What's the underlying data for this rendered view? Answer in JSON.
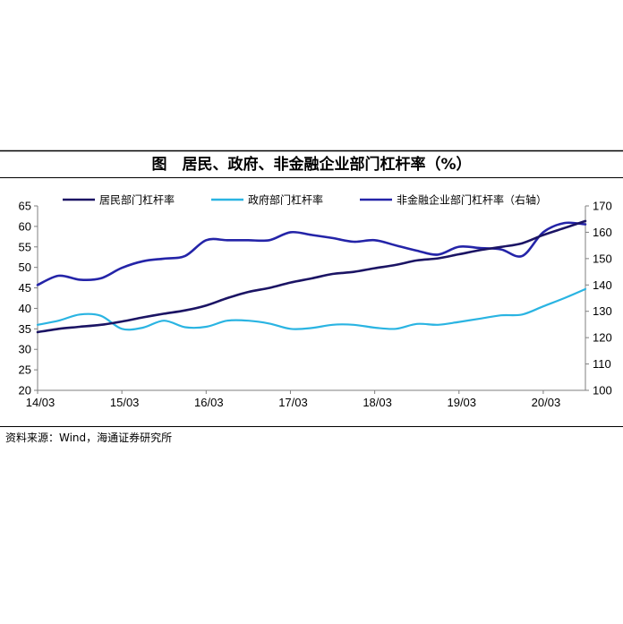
{
  "figure": {
    "title": "图　居民、政府、非金融企业部门杠杆率（%）",
    "source": "资料来源：Wind，海通证券研究所"
  },
  "colors": {
    "household": "#1b1464",
    "government": "#2ab4e2",
    "corporate": "#2424a8",
    "rule": "#000000",
    "axis": "#7f7f7f"
  },
  "chart_data": {
    "type": "line",
    "x_tick_labels": [
      "14/03",
      "15/03",
      "16/03",
      "17/03",
      "18/03",
      "19/03",
      "20/03"
    ],
    "x_ticks": [
      "2014-03",
      "2015-03",
      "2016-03",
      "2017-03",
      "2018-03",
      "2019-03",
      "2020-03"
    ],
    "x_range": [
      "2014-03",
      "2020-09"
    ],
    "y_left": {
      "min": 20,
      "max": 65,
      "step": 5,
      "ticks": [
        "65",
        "60",
        "55",
        "50",
        "45",
        "40",
        "35",
        "30",
        "25",
        "20"
      ]
    },
    "y_right": {
      "min": 100,
      "max": 170,
      "step": 10,
      "ticks": [
        "170",
        "160",
        "150",
        "140",
        "130",
        "120",
        "110",
        "100"
      ]
    },
    "grid": false,
    "legend_position": "top",
    "series": [
      {
        "key": "household",
        "name": "居民部门杠杆率",
        "axis": "left",
        "x": [
          "2014-03",
          "2014-06",
          "2014-09",
          "2014-12",
          "2015-03",
          "2015-06",
          "2015-09",
          "2015-12",
          "2016-03",
          "2016-06",
          "2016-09",
          "2016-12",
          "2017-03",
          "2017-06",
          "2017-09",
          "2017-12",
          "2018-03",
          "2018-06",
          "2018-09",
          "2018-12",
          "2019-03",
          "2019-06",
          "2019-09",
          "2019-12",
          "2020-03",
          "2020-06",
          "2020-09"
        ],
        "values": [
          34.2,
          35.0,
          35.5,
          36.0,
          36.8,
          37.8,
          38.7,
          39.5,
          40.7,
          42.5,
          44.0,
          45.0,
          46.3,
          47.3,
          48.4,
          48.9,
          49.8,
          50.6,
          51.7,
          52.2,
          53.2,
          54.2,
          55.0,
          55.9,
          57.9,
          59.6,
          61.3
        ]
      },
      {
        "key": "government",
        "name": "政府部门杠杆率",
        "axis": "left",
        "x": [
          "2014-03",
          "2014-06",
          "2014-09",
          "2014-12",
          "2015-03",
          "2015-06",
          "2015-09",
          "2015-12",
          "2016-03",
          "2016-06",
          "2016-09",
          "2016-12",
          "2017-03",
          "2017-06",
          "2017-09",
          "2017-12",
          "2018-03",
          "2018-06",
          "2018-09",
          "2018-12",
          "2019-03",
          "2019-06",
          "2019-09",
          "2019-12",
          "2020-03",
          "2020-06",
          "2020-09"
        ],
        "values": [
          36.0,
          37.0,
          38.5,
          38.2,
          35.0,
          35.3,
          37.0,
          35.4,
          35.5,
          37.0,
          37.0,
          36.3,
          35.0,
          35.2,
          36.0,
          36.0,
          35.3,
          35.0,
          36.2,
          36.0,
          36.7,
          37.5,
          38.3,
          38.5,
          40.5,
          42.5,
          44.7
        ]
      },
      {
        "key": "corporate",
        "name": "非金融企业部门杠杆率（右轴）",
        "axis": "right",
        "x": [
          "2014-03",
          "2014-06",
          "2014-09",
          "2014-12",
          "2015-03",
          "2015-06",
          "2015-09",
          "2015-12",
          "2016-03",
          "2016-06",
          "2016-09",
          "2016-12",
          "2017-03",
          "2017-06",
          "2017-09",
          "2017-12",
          "2018-03",
          "2018-06",
          "2018-09",
          "2018-12",
          "2019-03",
          "2019-06",
          "2019-09",
          "2019-12",
          "2020-03",
          "2020-06",
          "2020-09"
        ],
        "values": [
          140.0,
          143.5,
          142.0,
          142.5,
          146.5,
          149.0,
          150.0,
          151.0,
          157.0,
          157.0,
          157.0,
          157.0,
          160.0,
          159.0,
          157.8,
          156.4,
          157.0,
          155.0,
          153.0,
          151.5,
          154.5,
          154.0,
          153.5,
          151.0,
          160.0,
          163.5,
          163.0
        ]
      }
    ]
  }
}
